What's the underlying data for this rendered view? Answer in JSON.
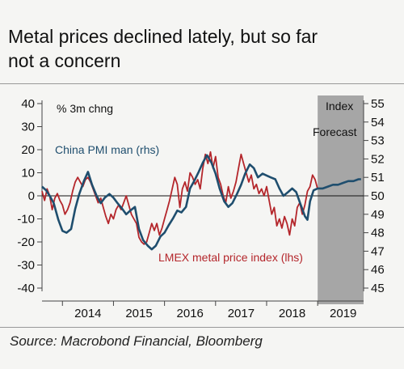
{
  "header": {
    "title_line1": "Metal prices declined lately, but so far",
    "title_line2": "not a concern"
  },
  "footer": {
    "source": "Source: Macrobond Financial, Bloomberg"
  },
  "colors": {
    "pmi": "#1f4e6e",
    "lmex": "#b4262b",
    "forecast_band": "#a6a6a6",
    "zero_line": "#111111"
  },
  "chart_data": {
    "type": "line",
    "title": "",
    "left_axis_label": "% 3m chng",
    "right_axis_label": "Index",
    "forecast_label": "Forecast",
    "left_ylim": [
      -40,
      40
    ],
    "right_ylim": [
      45,
      55
    ],
    "left_ticks": [
      "40",
      "30",
      "20",
      "10",
      "0",
      "-10",
      "-20",
      "-30",
      "-40"
    ],
    "right_ticks": [
      "55",
      "54",
      "53",
      "52",
      "51",
      "50",
      "49",
      "48",
      "47",
      "46",
      "45"
    ],
    "xlim": [
      2013.6,
      2019.9
    ],
    "x_tick_labels": [
      "2014",
      "2015",
      "2016",
      "2017",
      "2018",
      "2019"
    ],
    "forecast_start": 2019.0,
    "grid": false,
    "series": [
      {
        "name": "China PMI man (rhs)",
        "axis": "right",
        "points": [
          [
            2013.6,
            50.5
          ],
          [
            2013.68,
            50.3
          ],
          [
            2013.75,
            50.0
          ],
          [
            2013.83,
            49.6
          ],
          [
            2013.92,
            48.7
          ],
          [
            2014.0,
            48.1
          ],
          [
            2014.08,
            48.0
          ],
          [
            2014.17,
            48.2
          ],
          [
            2014.25,
            49.3
          ],
          [
            2014.33,
            50.1
          ],
          [
            2014.42,
            50.8
          ],
          [
            2014.5,
            51.3
          ],
          [
            2014.58,
            50.6
          ],
          [
            2014.67,
            50.0
          ],
          [
            2014.75,
            49.6
          ],
          [
            2014.83,
            49.9
          ],
          [
            2014.92,
            50.1
          ],
          [
            2015.0,
            49.9
          ],
          [
            2015.08,
            49.6
          ],
          [
            2015.17,
            49.3
          ],
          [
            2015.25,
            49.0
          ],
          [
            2015.33,
            49.2
          ],
          [
            2015.42,
            49.4
          ],
          [
            2015.5,
            48.2
          ],
          [
            2015.58,
            47.6
          ],
          [
            2015.67,
            47.3
          ],
          [
            2015.75,
            47.1
          ],
          [
            2015.83,
            47.3
          ],
          [
            2015.92,
            47.8
          ],
          [
            2016.0,
            48.0
          ],
          [
            2016.08,
            48.4
          ],
          [
            2016.17,
            48.8
          ],
          [
            2016.25,
            49.2
          ],
          [
            2016.33,
            49.1
          ],
          [
            2016.42,
            49.4
          ],
          [
            2016.5,
            50.4
          ],
          [
            2016.58,
            50.8
          ],
          [
            2016.67,
            51.3
          ],
          [
            2016.75,
            51.8
          ],
          [
            2016.83,
            52.2
          ],
          [
            2016.92,
            51.8
          ],
          [
            2017.0,
            51.2
          ],
          [
            2017.08,
            50.4
          ],
          [
            2017.17,
            49.7
          ],
          [
            2017.25,
            49.4
          ],
          [
            2017.33,
            49.6
          ],
          [
            2017.42,
            50.1
          ],
          [
            2017.5,
            50.6
          ],
          [
            2017.58,
            51.2
          ],
          [
            2017.67,
            51.7
          ],
          [
            2017.75,
            51.5
          ],
          [
            2017.83,
            51.0
          ],
          [
            2017.92,
            51.2
          ],
          [
            2018.0,
            51.1
          ],
          [
            2018.08,
            51.0
          ],
          [
            2018.17,
            50.9
          ],
          [
            2018.25,
            50.4
          ],
          [
            2018.33,
            50.0
          ],
          [
            2018.42,
            50.2
          ],
          [
            2018.5,
            50.4
          ],
          [
            2018.58,
            50.2
          ],
          [
            2018.67,
            49.5
          ],
          [
            2018.75,
            48.9
          ],
          [
            2018.8,
            48.7
          ],
          [
            2018.85,
            49.7
          ],
          [
            2018.92,
            50.3
          ],
          [
            2019.0,
            50.4
          ],
          [
            2019.1,
            50.4
          ],
          [
            2019.2,
            50.5
          ],
          [
            2019.3,
            50.6
          ],
          [
            2019.4,
            50.6
          ],
          [
            2019.5,
            50.7
          ],
          [
            2019.6,
            50.8
          ],
          [
            2019.7,
            50.8
          ],
          [
            2019.8,
            50.9
          ],
          [
            2019.85,
            50.9
          ]
        ]
      },
      {
        "name": "LMEX metal price index (lhs)",
        "axis": "left",
        "points": [
          [
            2013.6,
            2.0
          ],
          [
            2013.65,
            -2.0
          ],
          [
            2013.7,
            3.0
          ],
          [
            2013.75,
            0.0
          ],
          [
            2013.8,
            -6.0
          ],
          [
            2013.85,
            -1.0
          ],
          [
            2013.9,
            1.0
          ],
          [
            2013.95,
            -2.0
          ],
          [
            2014.0,
            -4.0
          ],
          [
            2014.05,
            -8.0
          ],
          [
            2014.1,
            -6.0
          ],
          [
            2014.15,
            -3.0
          ],
          [
            2014.2,
            2.0
          ],
          [
            2014.25,
            6.0
          ],
          [
            2014.3,
            8.0
          ],
          [
            2014.35,
            6.0
          ],
          [
            2014.4,
            4.0
          ],
          [
            2014.45,
            7.0
          ],
          [
            2014.5,
            8.0
          ],
          [
            2014.55,
            6.0
          ],
          [
            2014.6,
            3.0
          ],
          [
            2014.65,
            0.0
          ],
          [
            2014.7,
            -3.0
          ],
          [
            2014.75,
            -1.0
          ],
          [
            2014.8,
            -5.0
          ],
          [
            2014.85,
            -9.0
          ],
          [
            2014.9,
            -12.0
          ],
          [
            2014.95,
            -8.0
          ],
          [
            2015.0,
            -10.0
          ],
          [
            2015.05,
            -6.0
          ],
          [
            2015.1,
            -4.0
          ],
          [
            2015.15,
            -6.0
          ],
          [
            2015.2,
            -3.0
          ],
          [
            2015.25,
            0.0
          ],
          [
            2015.3,
            -4.0
          ],
          [
            2015.35,
            -8.0
          ],
          [
            2015.4,
            -10.0
          ],
          [
            2015.45,
            -12.0
          ],
          [
            2015.5,
            -18.0
          ],
          [
            2015.55,
            -20.0
          ],
          [
            2015.6,
            -21.0
          ],
          [
            2015.65,
            -20.0
          ],
          [
            2015.7,
            -16.0
          ],
          [
            2015.75,
            -12.0
          ],
          [
            2015.8,
            -15.0
          ],
          [
            2015.85,
            -12.0
          ],
          [
            2015.9,
            -17.0
          ],
          [
            2015.95,
            -14.0
          ],
          [
            2016.0,
            -10.0
          ],
          [
            2016.05,
            -6.0
          ],
          [
            2016.1,
            -2.0
          ],
          [
            2016.15,
            3.0
          ],
          [
            2016.2,
            8.0
          ],
          [
            2016.25,
            5.0
          ],
          [
            2016.3,
            -5.0
          ],
          [
            2016.35,
            3.0
          ],
          [
            2016.4,
            6.0
          ],
          [
            2016.45,
            2.0
          ],
          [
            2016.5,
            10.0
          ],
          [
            2016.55,
            8.0
          ],
          [
            2016.6,
            5.0
          ],
          [
            2016.65,
            7.0
          ],
          [
            2016.7,
            3.0
          ],
          [
            2016.75,
            12.0
          ],
          [
            2016.8,
            18.0
          ],
          [
            2016.85,
            14.0
          ],
          [
            2016.9,
            19.0
          ],
          [
            2016.95,
            12.0
          ],
          [
            2017.0,
            17.0
          ],
          [
            2017.05,
            8.0
          ],
          [
            2017.1,
            5.0
          ],
          [
            2017.15,
            0.0
          ],
          [
            2017.2,
            -3.0
          ],
          [
            2017.25,
            4.0
          ],
          [
            2017.3,
            -1.0
          ],
          [
            2017.35,
            2.0
          ],
          [
            2017.4,
            6.0
          ],
          [
            2017.45,
            12.0
          ],
          [
            2017.5,
            18.0
          ],
          [
            2017.55,
            14.0
          ],
          [
            2017.6,
            10.0
          ],
          [
            2017.65,
            6.0
          ],
          [
            2017.7,
            9.0
          ],
          [
            2017.75,
            3.0
          ],
          [
            2017.8,
            5.0
          ],
          [
            2017.85,
            1.0
          ],
          [
            2017.9,
            3.0
          ],
          [
            2017.95,
            0.0
          ],
          [
            2018.0,
            4.0
          ],
          [
            2018.05,
            -2.0
          ],
          [
            2018.1,
            -8.0
          ],
          [
            2018.15,
            -5.0
          ],
          [
            2018.2,
            -13.0
          ],
          [
            2018.25,
            -10.0
          ],
          [
            2018.3,
            -14.0
          ],
          [
            2018.35,
            -9.0
          ],
          [
            2018.4,
            -12.0
          ],
          [
            2018.45,
            -17.0
          ],
          [
            2018.5,
            -10.0
          ],
          [
            2018.55,
            -13.0
          ],
          [
            2018.6,
            -5.0
          ],
          [
            2018.65,
            -3.0
          ],
          [
            2018.7,
            -8.0
          ],
          [
            2018.75,
            -4.0
          ],
          [
            2018.8,
            2.0
          ],
          [
            2018.85,
            4.0
          ],
          [
            2018.9,
            9.0
          ],
          [
            2018.95,
            7.0
          ],
          [
            2019.0,
            3.0
          ]
        ]
      }
    ]
  }
}
